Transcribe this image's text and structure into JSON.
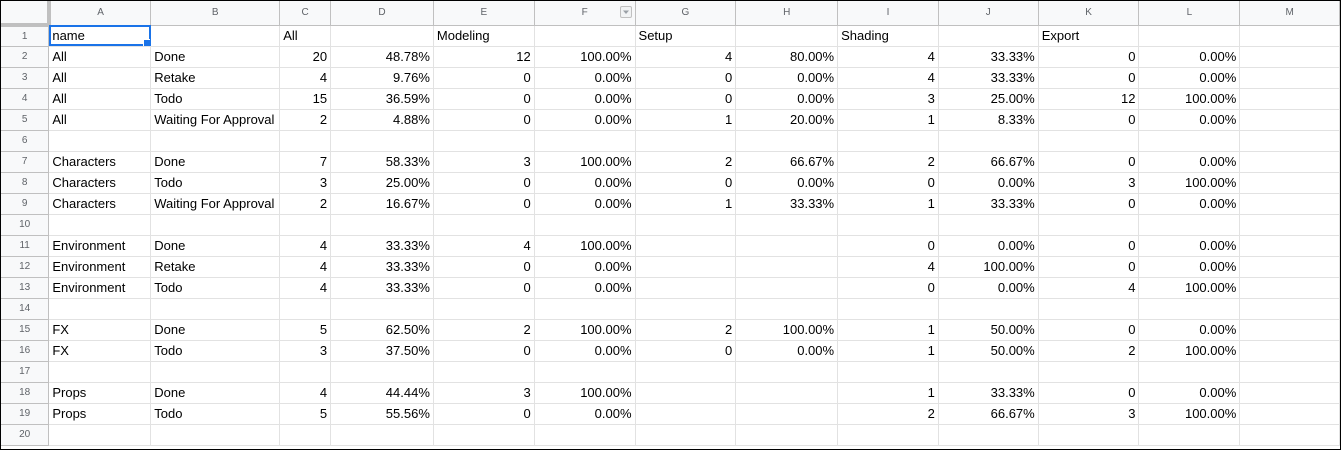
{
  "columns": [
    "A",
    "B",
    "C",
    "D",
    "E",
    "F",
    "G",
    "H",
    "I",
    "J",
    "K",
    "L",
    "M"
  ],
  "filter_column": "F",
  "selected_cell": "A1",
  "rows": [
    {
      "n": "1",
      "c": [
        "name",
        "",
        "All",
        "",
        "Modeling",
        "",
        "Setup",
        "",
        "Shading",
        "",
        "Export",
        "",
        ""
      ]
    },
    {
      "n": "2",
      "c": [
        "All",
        "Done",
        "20",
        "48.78%",
        "12",
        "100.00%",
        "4",
        "80.00%",
        "4",
        "33.33%",
        "0",
        "0.00%",
        ""
      ]
    },
    {
      "n": "3",
      "c": [
        "All",
        "Retake",
        "4",
        "9.76%",
        "0",
        "0.00%",
        "0",
        "0.00%",
        "4",
        "33.33%",
        "0",
        "0.00%",
        ""
      ]
    },
    {
      "n": "4",
      "c": [
        "All",
        "Todo",
        "15",
        "36.59%",
        "0",
        "0.00%",
        "0",
        "0.00%",
        "3",
        "25.00%",
        "12",
        "100.00%",
        ""
      ]
    },
    {
      "n": "5",
      "c": [
        "All",
        "Waiting For Approval",
        "2",
        "4.88%",
        "0",
        "0.00%",
        "1",
        "20.00%",
        "1",
        "8.33%",
        "0",
        "0.00%",
        ""
      ]
    },
    {
      "n": "6",
      "c": [
        "",
        "",
        "",
        "",
        "",
        "",
        "",
        "",
        "",
        "",
        "",
        "",
        ""
      ]
    },
    {
      "n": "7",
      "c": [
        "Characters",
        "Done",
        "7",
        "58.33%",
        "3",
        "100.00%",
        "2",
        "66.67%",
        "2",
        "66.67%",
        "0",
        "0.00%",
        ""
      ]
    },
    {
      "n": "8",
      "c": [
        "Characters",
        "Todo",
        "3",
        "25.00%",
        "0",
        "0.00%",
        "0",
        "0.00%",
        "0",
        "0.00%",
        "3",
        "100.00%",
        ""
      ]
    },
    {
      "n": "9",
      "c": [
        "Characters",
        "Waiting For Approval",
        "2",
        "16.67%",
        "0",
        "0.00%",
        "1",
        "33.33%",
        "1",
        "33.33%",
        "0",
        "0.00%",
        ""
      ]
    },
    {
      "n": "10",
      "c": [
        "",
        "",
        "",
        "",
        "",
        "",
        "",
        "",
        "",
        "",
        "",
        "",
        ""
      ]
    },
    {
      "n": "11",
      "c": [
        "Environment",
        "Done",
        "4",
        "33.33%",
        "4",
        "100.00%",
        "",
        "",
        "0",
        "0.00%",
        "0",
        "0.00%",
        ""
      ]
    },
    {
      "n": "12",
      "c": [
        "Environment",
        "Retake",
        "4",
        "33.33%",
        "0",
        "0.00%",
        "",
        "",
        "4",
        "100.00%",
        "0",
        "0.00%",
        ""
      ]
    },
    {
      "n": "13",
      "c": [
        "Environment",
        "Todo",
        "4",
        "33.33%",
        "0",
        "0.00%",
        "",
        "",
        "0",
        "0.00%",
        "4",
        "100.00%",
        ""
      ]
    },
    {
      "n": "14",
      "c": [
        "",
        "",
        "",
        "",
        "",
        "",
        "",
        "",
        "",
        "",
        "",
        "",
        ""
      ]
    },
    {
      "n": "15",
      "c": [
        "FX",
        "Done",
        "5",
        "62.50%",
        "2",
        "100.00%",
        "2",
        "100.00%",
        "1",
        "50.00%",
        "0",
        "0.00%",
        ""
      ]
    },
    {
      "n": "16",
      "c": [
        "FX",
        "Todo",
        "3",
        "37.50%",
        "0",
        "0.00%",
        "0",
        "0.00%",
        "1",
        "50.00%",
        "2",
        "100.00%",
        ""
      ]
    },
    {
      "n": "17",
      "c": [
        "",
        "",
        "",
        "",
        "",
        "",
        "",
        "",
        "",
        "",
        "",
        "",
        ""
      ]
    },
    {
      "n": "18",
      "c": [
        "Props",
        "Done",
        "4",
        "44.44%",
        "3",
        "100.00%",
        "",
        "",
        "1",
        "33.33%",
        "0",
        "0.00%",
        ""
      ]
    },
    {
      "n": "19",
      "c": [
        "Props",
        "Todo",
        "5",
        "55.56%",
        "0",
        "0.00%",
        "",
        "",
        "2",
        "66.67%",
        "3",
        "100.00%",
        ""
      ]
    },
    {
      "n": "20",
      "c": [
        "",
        "",
        "",
        "",
        "",
        "",
        "",
        "",
        "",
        "",
        "",
        "",
        ""
      ]
    }
  ]
}
